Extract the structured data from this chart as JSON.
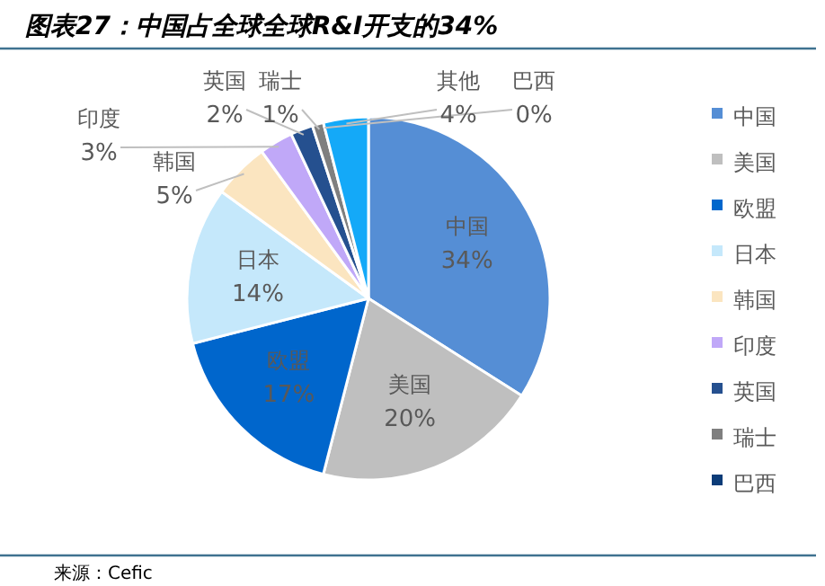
{
  "chart_data": {
    "type": "pie",
    "title": "图表27：中国占全球全球R&I开支的34%",
    "categories": [
      "中国",
      "美国",
      "欧盟",
      "日本",
      "韩国",
      "印度",
      "英国",
      "瑞士",
      "巴西",
      "其他"
    ],
    "values": [
      34,
      20,
      17,
      14,
      5,
      3,
      2,
      1,
      0,
      4
    ],
    "colors": [
      "#558ed5",
      "#bfbfbf",
      "#0066cc",
      "#c5e8fb",
      "#fbe5c0",
      "#c0a8f8",
      "#25508f",
      "#7f7f7f",
      "#0c3c78",
      "#14a9f8"
    ],
    "value_labels": [
      "34%",
      "20%",
      "17%",
      "14%",
      "5%",
      "3%",
      "2%",
      "1%",
      "0%",
      "4%"
    ],
    "legend": "right",
    "annotations": [
      "来源：Cefic"
    ]
  }
}
